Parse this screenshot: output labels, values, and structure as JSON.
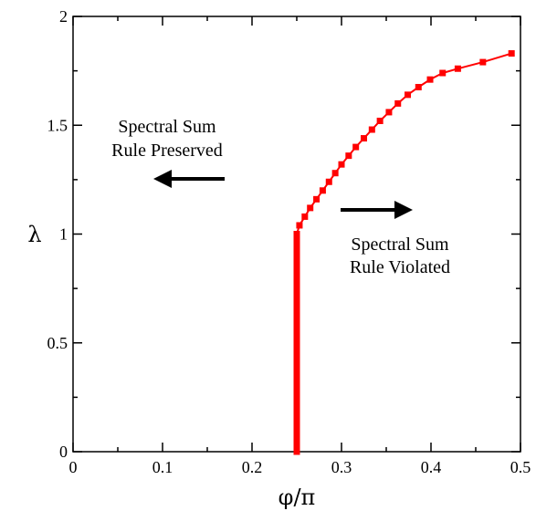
{
  "chart_data": {
    "type": "line",
    "title": "",
    "xlabel": "φ/π",
    "ylabel": "λ",
    "xlim": [
      0,
      0.5
    ],
    "ylim": [
      0,
      2
    ],
    "xticks": [
      "0",
      "0.1",
      "0.2",
      "0.3",
      "0.4",
      "0.5"
    ],
    "yticks": [
      "0",
      "0.5",
      "1",
      "1.5",
      "2"
    ],
    "grid": false,
    "series": [
      {
        "color": "#ff0000",
        "marker": "square",
        "x": [
          0.25,
          0.25,
          0.25,
          0.25,
          0.25,
          0.25,
          0.25,
          0.25,
          0.25,
          0.25,
          0.25,
          0.25,
          0.25,
          0.25,
          0.25,
          0.25,
          0.25,
          0.25,
          0.25,
          0.25,
          0.25,
          0.25,
          0.25,
          0.25,
          0.25,
          0.25,
          0.25,
          0.25,
          0.25,
          0.25,
          0.25,
          0.25,
          0.25,
          0.25,
          0.25,
          0.25,
          0.25,
          0.25,
          0.25,
          0.25,
          0.25,
          0.253,
          0.259,
          0.265,
          0.272,
          0.279,
          0.286,
          0.293,
          0.3,
          0.308,
          0.316,
          0.325,
          0.334,
          0.343,
          0.353,
          0.363,
          0.374,
          0.386,
          0.399,
          0.413,
          0.43,
          0.458,
          0.49
        ],
        "y": [
          0,
          0.025,
          0.05,
          0.075,
          0.1,
          0.125,
          0.15,
          0.175,
          0.2,
          0.225,
          0.25,
          0.275,
          0.3,
          0.325,
          0.35,
          0.375,
          0.4,
          0.425,
          0.45,
          0.475,
          0.5,
          0.525,
          0.55,
          0.575,
          0.6,
          0.625,
          0.65,
          0.675,
          0.7,
          0.725,
          0.75,
          0.775,
          0.8,
          0.825,
          0.85,
          0.875,
          0.9,
          0.925,
          0.95,
          0.975,
          1.0,
          1.04,
          1.08,
          1.12,
          1.16,
          1.2,
          1.24,
          1.28,
          1.32,
          1.36,
          1.4,
          1.44,
          1.48,
          1.52,
          1.56,
          1.6,
          1.64,
          1.675,
          1.71,
          1.74,
          1.76,
          1.79,
          1.83
        ]
      }
    ],
    "annotations": [
      {
        "lines": [
          "Spectral Sum",
          "Rule Preserved"
        ],
        "arrow": "left"
      },
      {
        "lines": [
          "Spectral Sum",
          "Rule Violated"
        ],
        "arrow": "right"
      }
    ]
  }
}
